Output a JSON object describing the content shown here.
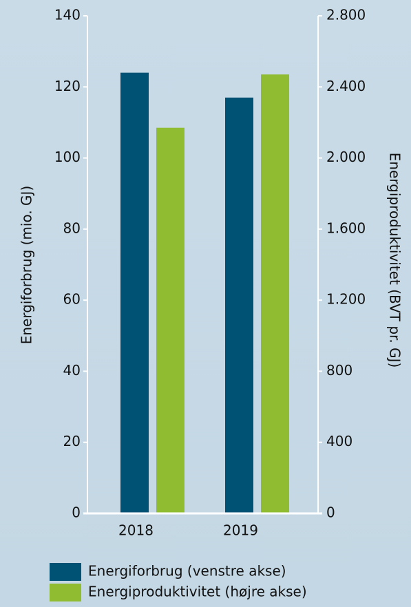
{
  "chart_data": {
    "type": "bar",
    "categories": [
      "2018",
      "2019"
    ],
    "series": [
      {
        "name": "Energiforbrug (venstre akse)",
        "color": "#005274",
        "values": [
          124,
          117
        ]
      },
      {
        "name": "Energiproduktivitet (højre akse)",
        "color": "#8fbc30",
        "values": [
          2170,
          2470
        ],
        "axis": "y2"
      }
    ],
    "ylabel": "Energiforbrug (mio. GJ)",
    "y2label": "Energiproduktivitet (BVT pr. GJ)",
    "ylim": [
      0,
      140
    ],
    "yticks": [
      0,
      20,
      40,
      60,
      80,
      100,
      120,
      140
    ],
    "y2lim": [
      0,
      2800
    ],
    "y2ticks": [
      0,
      400,
      800,
      {
        "value": 1200,
        "label": "1.200"
      },
      {
        "value": 1600,
        "label": "1.600"
      },
      {
        "value": 2000,
        "label": "2.000"
      },
      {
        "value": 2400,
        "label": "2.400"
      },
      {
        "value": 2800,
        "label": "2.800"
      }
    ],
    "legend": "bottom"
  }
}
